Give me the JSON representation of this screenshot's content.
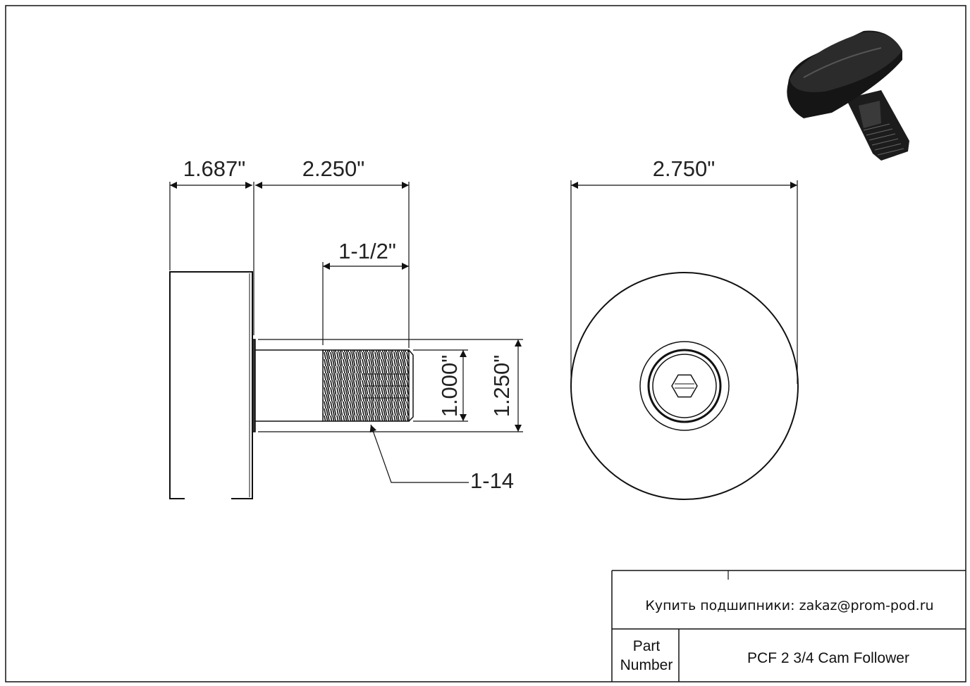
{
  "drawing": {
    "dimensions": {
      "roller_width": "1.687\"",
      "stud_length": "2.250\"",
      "thread_length": "1-1/2\"",
      "thread_diameter": "1.000\"",
      "stud_diameter": "1.250\"",
      "thread_spec": "1-14",
      "outer_diameter": "2.750\""
    }
  },
  "title_block": {
    "contact": "Купить подшипники: zakaz@prom-pod.ru",
    "part_number_label_line1": "Part",
    "part_number_label_line2": "Number",
    "part_number": "PCF 2 3/4 Cam Follower"
  },
  "colors": {
    "line": "#111111",
    "part_fill": "#1a1a1a"
  }
}
